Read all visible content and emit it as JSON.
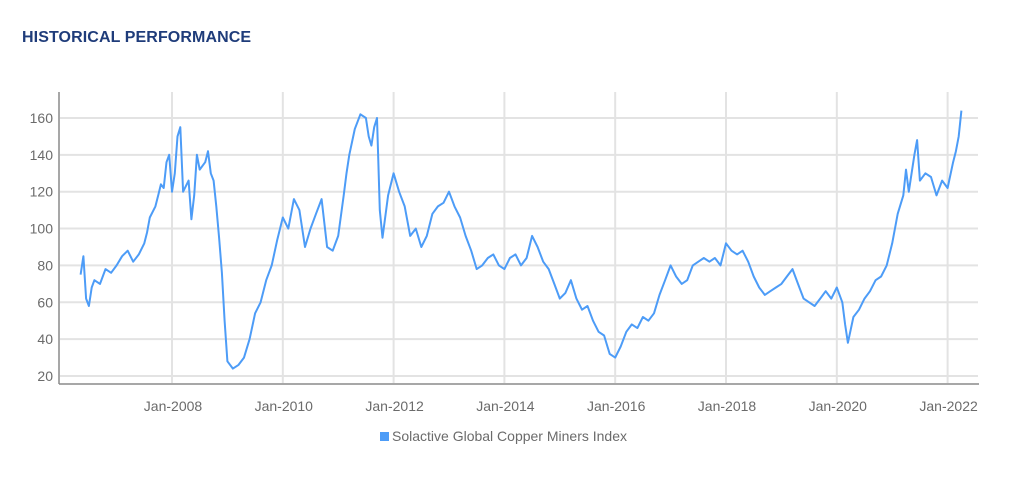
{
  "header": {
    "title": "HISTORICAL PERFORMANCE"
  },
  "colors": {
    "series": "#4d9cf7",
    "grid": "#e3e3e3",
    "axis": "#8a8a8a",
    "title": "#1f3c7a"
  },
  "chart_data": {
    "type": "line",
    "title": "HISTORICAL PERFORMANCE",
    "xlabel": "",
    "ylabel": "",
    "ylim": [
      20,
      170
    ],
    "yticks": [
      20,
      40,
      60,
      80,
      100,
      120,
      140,
      160
    ],
    "xticks": [
      "Jan-2008",
      "Jan-2010",
      "Jan-2012",
      "Jan-2014",
      "Jan-2016",
      "Jan-2018",
      "Jan-2020",
      "Jan-2022"
    ],
    "grid": true,
    "legend_position": "bottom",
    "series": [
      {
        "name": "Solactive Global Copper Miners Index",
        "x": [
          2006.35,
          2006.4,
          2006.45,
          2006.5,
          2006.55,
          2006.6,
          2006.7,
          2006.8,
          2006.9,
          2007.0,
          2007.1,
          2007.2,
          2007.3,
          2007.4,
          2007.5,
          2007.55,
          2007.6,
          2007.7,
          2007.75,
          2007.8,
          2007.85,
          2007.9,
          2007.95,
          2008.0,
          2008.05,
          2008.1,
          2008.15,
          2008.2,
          2008.3,
          2008.35,
          2008.4,
          2008.45,
          2008.5,
          2008.6,
          2008.65,
          2008.7,
          2008.75,
          2008.8,
          2008.85,
          2008.9,
          2008.95,
          2009.0,
          2009.1,
          2009.2,
          2009.3,
          2009.4,
          2009.5,
          2009.6,
          2009.7,
          2009.8,
          2009.9,
          2010.0,
          2010.1,
          2010.2,
          2010.3,
          2010.4,
          2010.5,
          2010.6,
          2010.7,
          2010.8,
          2010.9,
          2011.0,
          2011.1,
          2011.15,
          2011.2,
          2011.3,
          2011.4,
          2011.5,
          2011.55,
          2011.6,
          2011.65,
          2011.7,
          2011.75,
          2011.8,
          2011.9,
          2012.0,
          2012.1,
          2012.2,
          2012.3,
          2012.4,
          2012.5,
          2012.6,
          2012.7,
          2012.8,
          2012.9,
          2013.0,
          2013.1,
          2013.2,
          2013.3,
          2013.4,
          2013.5,
          2013.6,
          2013.7,
          2013.8,
          2013.9,
          2014.0,
          2014.1,
          2014.2,
          2014.3,
          2014.4,
          2014.5,
          2014.6,
          2014.7,
          2014.8,
          2014.9,
          2015.0,
          2015.1,
          2015.2,
          2015.3,
          2015.4,
          2015.5,
          2015.6,
          2015.7,
          2015.8,
          2015.9,
          2016.0,
          2016.1,
          2016.2,
          2016.3,
          2016.4,
          2016.5,
          2016.6,
          2016.7,
          2016.8,
          2016.9,
          2017.0,
          2017.1,
          2017.2,
          2017.3,
          2017.4,
          2017.5,
          2017.6,
          2017.7,
          2017.8,
          2017.9,
          2018.0,
          2018.1,
          2018.2,
          2018.3,
          2018.4,
          2018.5,
          2018.6,
          2018.7,
          2018.8,
          2018.9,
          2019.0,
          2019.1,
          2019.2,
          2019.3,
          2019.4,
          2019.5,
          2019.6,
          2019.7,
          2019.8,
          2019.9,
          2020.0,
          2020.1,
          2020.15,
          2020.2,
          2020.3,
          2020.4,
          2020.5,
          2020.6,
          2020.7,
          2020.8,
          2020.9,
          2021.0,
          2021.1,
          2021.2,
          2021.25,
          2021.3,
          2021.4,
          2021.45,
          2021.5,
          2021.6,
          2021.7,
          2021.8,
          2021.9,
          2022.0,
          2022.1,
          2022.15,
          2022.2,
          2022.25
        ],
        "values": [
          75,
          85,
          62,
          58,
          68,
          72,
          70,
          78,
          76,
          80,
          85,
          88,
          82,
          86,
          92,
          98,
          106,
          112,
          118,
          124,
          122,
          136,
          140,
          120,
          130,
          150,
          155,
          120,
          126,
          105,
          118,
          140,
          132,
          136,
          142,
          130,
          126,
          112,
          95,
          76,
          50,
          28,
          24,
          26,
          30,
          40,
          54,
          60,
          72,
          80,
          94,
          106,
          100,
          116,
          110,
          90,
          100,
          108,
          116,
          90,
          88,
          96,
          118,
          130,
          140,
          154,
          162,
          160,
          150,
          145,
          155,
          160,
          110,
          95,
          118,
          130,
          120,
          112,
          96,
          100,
          90,
          96,
          108,
          112,
          114,
          120,
          112,
          106,
          96,
          88,
          78,
          80,
          84,
          86,
          80,
          78,
          84,
          86,
          80,
          84,
          96,
          90,
          82,
          78,
          70,
          62,
          65,
          72,
          62,
          56,
          58,
          50,
          44,
          42,
          32,
          30,
          36,
          44,
          48,
          46,
          52,
          50,
          54,
          64,
          72,
          80,
          74,
          70,
          72,
          80,
          82,
          84,
          82,
          84,
          80,
          92,
          88,
          86,
          88,
          82,
          74,
          68,
          64,
          66,
          68,
          70,
          74,
          78,
          70,
          62,
          60,
          58,
          62,
          66,
          62,
          68,
          60,
          48,
          38,
          52,
          56,
          62,
          66,
          72,
          74,
          80,
          92,
          108,
          118,
          132,
          120,
          140,
          148,
          126,
          130,
          128,
          118,
          126,
          122,
          136,
          142,
          150,
          164
        ]
      }
    ]
  },
  "legend": {
    "label": "Solactive Global Copper Miners Index",
    "icon": "square-legend-swatch"
  }
}
